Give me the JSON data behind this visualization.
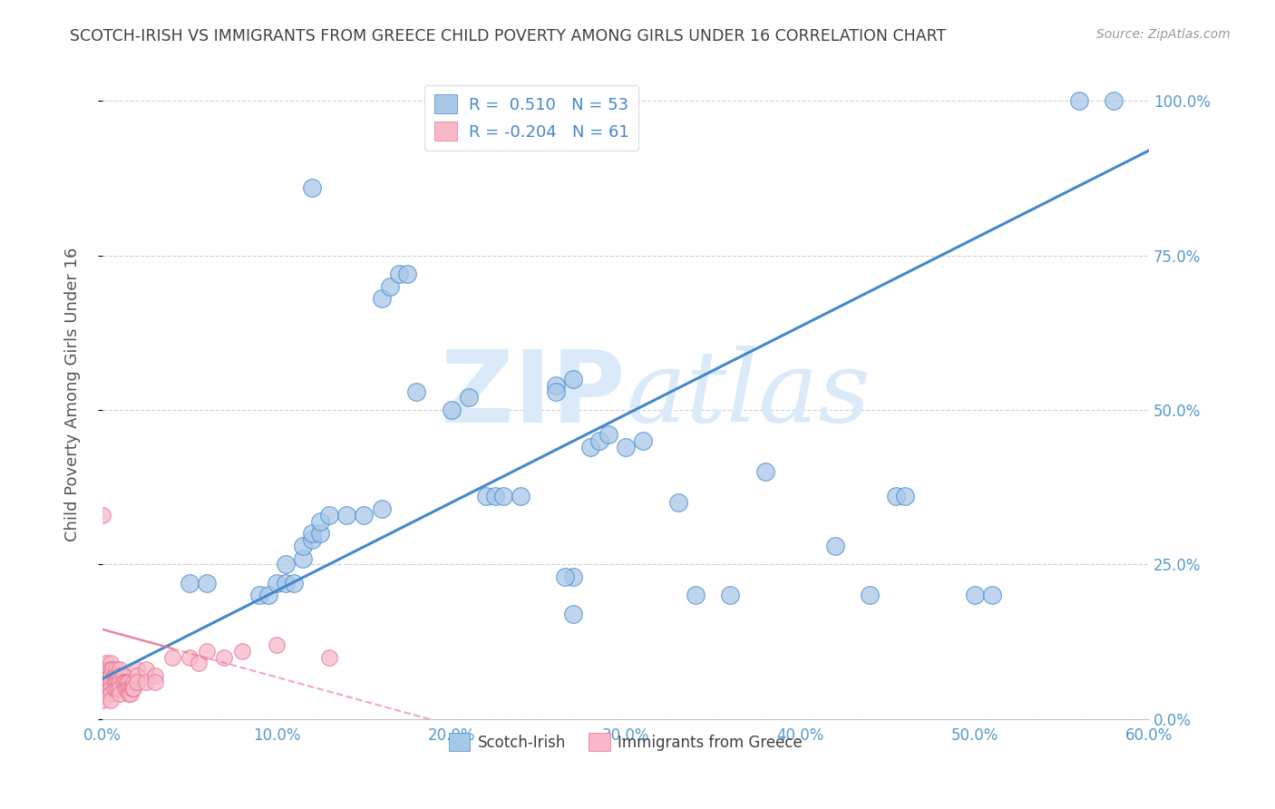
{
  "title": "SCOTCH-IRISH VS IMMIGRANTS FROM GREECE CHILD POVERTY AMONG GIRLS UNDER 16 CORRELATION CHART",
  "source": "Source: ZipAtlas.com",
  "ylabel": "Child Poverty Among Girls Under 16",
  "x_tick_labels": [
    "0.0%",
    "10.0%",
    "20.0%",
    "30.0%",
    "40.0%",
    "50.0%",
    "60.0%"
  ],
  "y_tick_labels": [
    "0.0%",
    "25.0%",
    "50.0%",
    "75.0%",
    "100.0%"
  ],
  "xlim": [
    0.0,
    0.6
  ],
  "ylim": [
    0.0,
    1.05
  ],
  "blue_color": "#a8c8e8",
  "blue_line_color": "#4488cc",
  "pink_color": "#f8b8c8",
  "pink_line_color": "#e87090",
  "watermark_color": "#daeaf8",
  "background_color": "#ffffff",
  "grid_color": "#cccccc",
  "title_color": "#404040",
  "axis_tick_color": "#5599cc",
  "blue_trend_x0": 0.0,
  "blue_trend_y0": 0.065,
  "blue_trend_x1": 0.6,
  "blue_trend_y1": 0.92,
  "pink_trend_x0": 0.0,
  "pink_trend_y0": 0.145,
  "pink_trend_x1": 0.2,
  "pink_trend_y1": -0.01,
  "blue_scatter_x": [
    0.05,
    0.06,
    0.09,
    0.095,
    0.1,
    0.105,
    0.105,
    0.11,
    0.115,
    0.115,
    0.12,
    0.12,
    0.125,
    0.125,
    0.13,
    0.14,
    0.15,
    0.16,
    0.16,
    0.165,
    0.17,
    0.175,
    0.18,
    0.2,
    0.21,
    0.22,
    0.225,
    0.23,
    0.24,
    0.26,
    0.27,
    0.28,
    0.285,
    0.29,
    0.3,
    0.31,
    0.33,
    0.34,
    0.36,
    0.38,
    0.42,
    0.44,
    0.455,
    0.46,
    0.5,
    0.51,
    0.56,
    0.58,
    0.12,
    0.26,
    0.27,
    0.265,
    0.27
  ],
  "blue_scatter_y": [
    0.22,
    0.22,
    0.2,
    0.2,
    0.22,
    0.22,
    0.25,
    0.22,
    0.26,
    0.28,
    0.29,
    0.3,
    0.3,
    0.32,
    0.33,
    0.33,
    0.33,
    0.34,
    0.68,
    0.7,
    0.72,
    0.72,
    0.53,
    0.5,
    0.52,
    0.36,
    0.36,
    0.36,
    0.36,
    0.54,
    0.55,
    0.44,
    0.45,
    0.46,
    0.44,
    0.45,
    0.35,
    0.2,
    0.2,
    0.4,
    0.28,
    0.2,
    0.36,
    0.36,
    0.2,
    0.2,
    1.0,
    1.0,
    0.86,
    0.53,
    0.23,
    0.23,
    0.17
  ],
  "pink_scatter_x": [
    0.0,
    0.0,
    0.0,
    0.002,
    0.002,
    0.003,
    0.003,
    0.004,
    0.004,
    0.005,
    0.005,
    0.005,
    0.005,
    0.005,
    0.005,
    0.005,
    0.006,
    0.007,
    0.007,
    0.007,
    0.008,
    0.008,
    0.008,
    0.008,
    0.009,
    0.009,
    0.009,
    0.01,
    0.01,
    0.01,
    0.01,
    0.01,
    0.012,
    0.012,
    0.013,
    0.013,
    0.014,
    0.014,
    0.015,
    0.015,
    0.015,
    0.016,
    0.016,
    0.017,
    0.018,
    0.018,
    0.02,
    0.02,
    0.02,
    0.025,
    0.025,
    0.03,
    0.03,
    0.04,
    0.05,
    0.055,
    0.06,
    0.07,
    0.08,
    0.1,
    0.13
  ],
  "pink_scatter_y": [
    0.33,
    0.06,
    0.03,
    0.09,
    0.07,
    0.08,
    0.06,
    0.07,
    0.05,
    0.09,
    0.08,
    0.07,
    0.06,
    0.05,
    0.04,
    0.03,
    0.08,
    0.07,
    0.06,
    0.05,
    0.08,
    0.07,
    0.06,
    0.05,
    0.07,
    0.06,
    0.05,
    0.08,
    0.07,
    0.06,
    0.05,
    0.04,
    0.07,
    0.06,
    0.06,
    0.05,
    0.06,
    0.05,
    0.06,
    0.05,
    0.04,
    0.05,
    0.04,
    0.05,
    0.06,
    0.05,
    0.08,
    0.07,
    0.06,
    0.08,
    0.06,
    0.07,
    0.06,
    0.1,
    0.1,
    0.09,
    0.11,
    0.1,
    0.11,
    0.12,
    0.1
  ]
}
